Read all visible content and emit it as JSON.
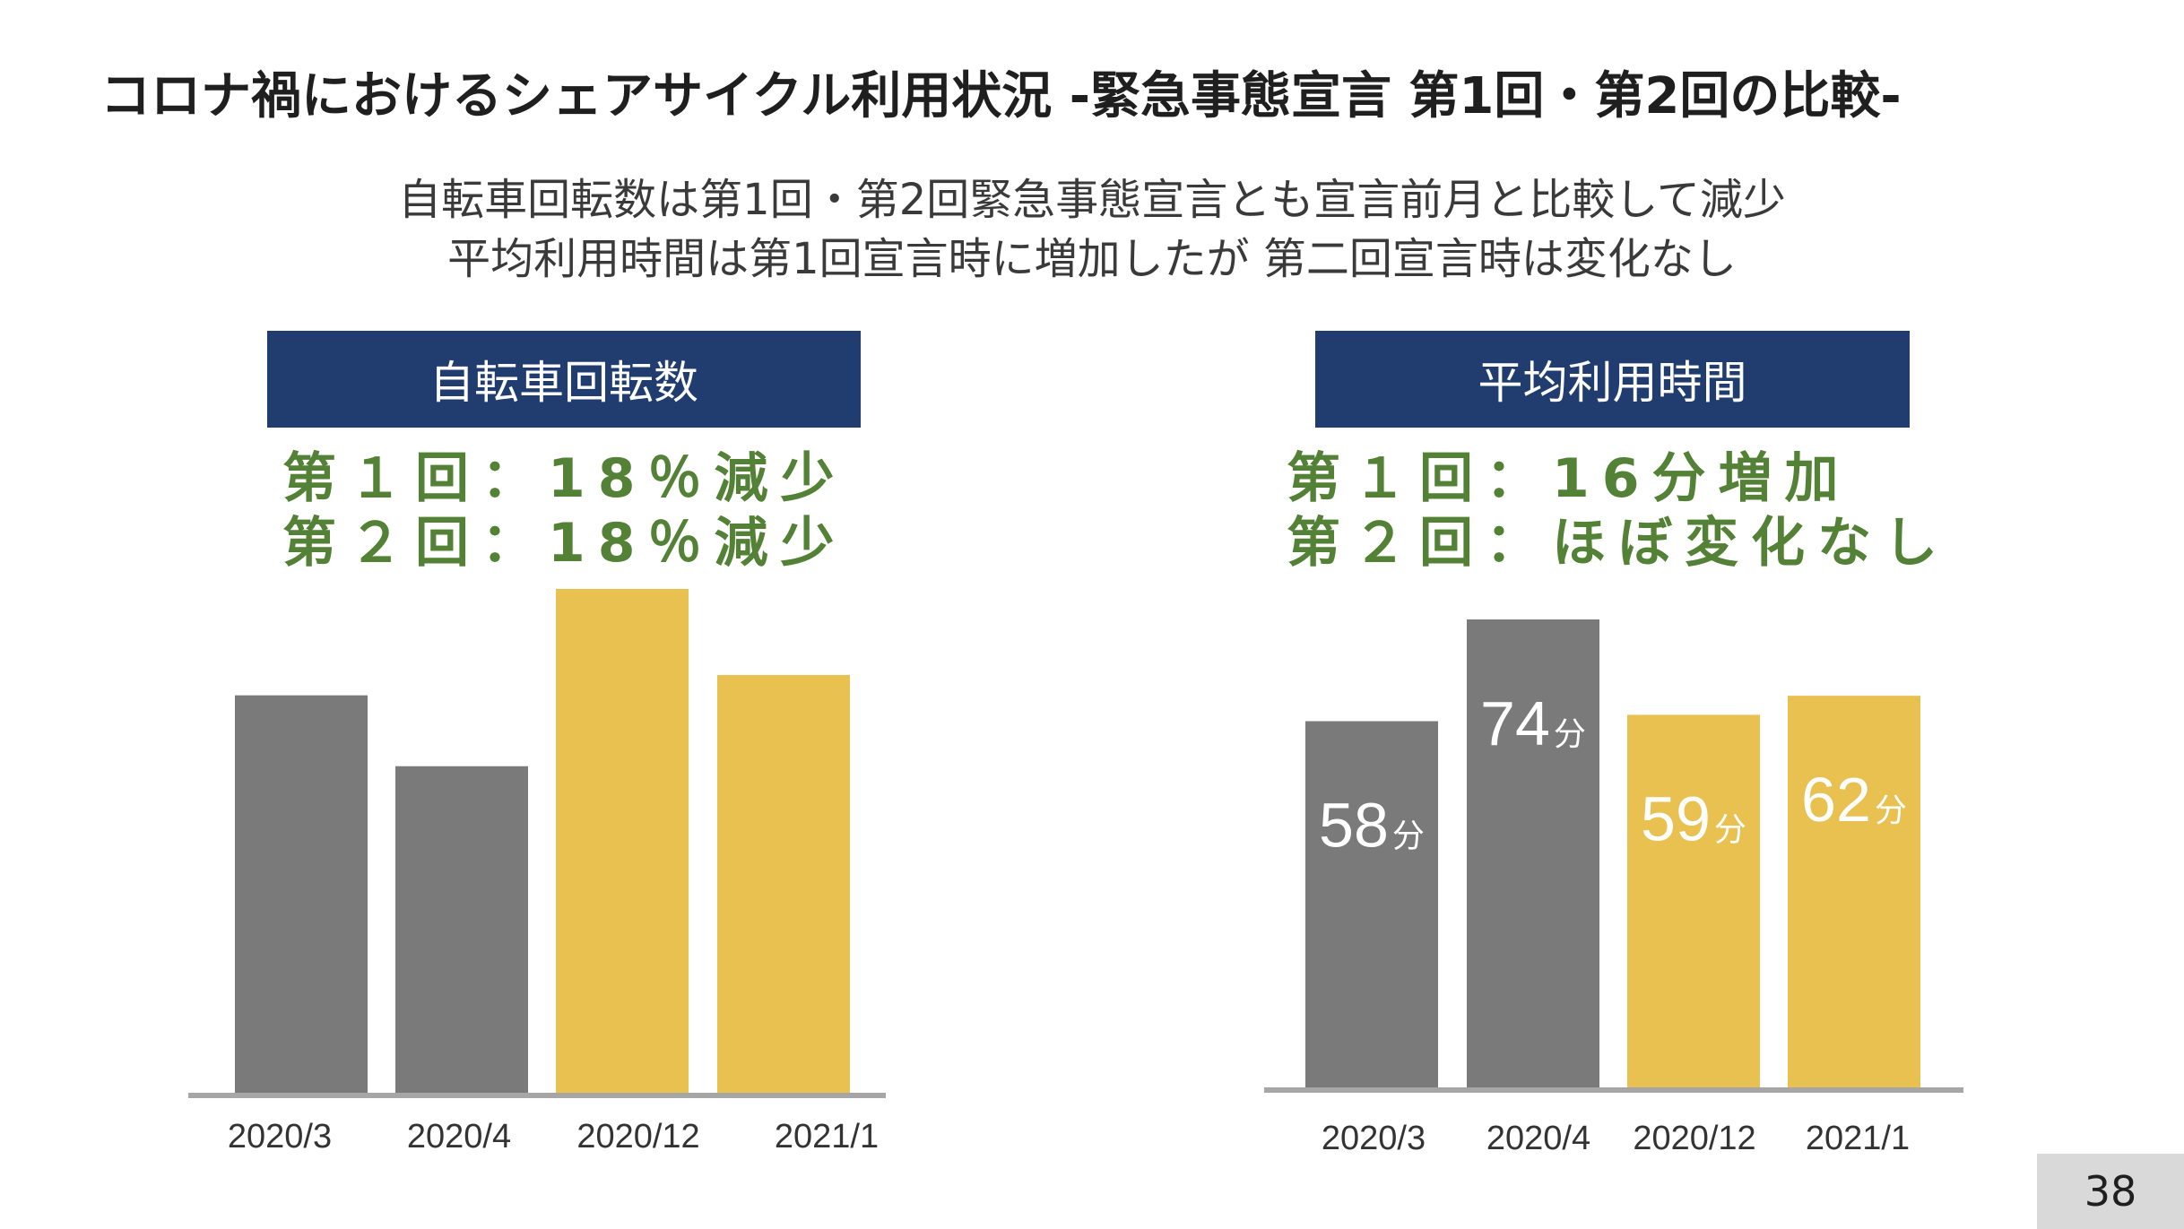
{
  "slide": {
    "title": "コロナ禍におけるシェアサイクル利用状況 -緊急事態宣言 第1回・第2回の比較-",
    "subtitle_line1": "自転車回転数は第1回・第2回緊急事態宣言とも宣言前月と比較して減少",
    "subtitle_line2": "平均利用時間は第1回宣言時に増加したが 第二回宣言時は変化なし",
    "page_number": "38"
  },
  "panels": {
    "left": {
      "header": "自転車回転数",
      "summary_line1": "第１回：18％減少",
      "summary_line2": "第２回：18％減少"
    },
    "right": {
      "header": "平均利用時間",
      "summary_line1": "第１回：16分増加",
      "summary_line2": "第２回：ほぼ変化なし"
    }
  },
  "colors": {
    "gray_bar": "#7a7a7a",
    "yellow_bar": "#e8c150",
    "header_bg": "#213d70",
    "summary_text": "#538135",
    "axis": "#a6a6a6"
  },
  "chart_data": [
    {
      "type": "bar",
      "title": "自転車回転数",
      "categories": [
        "2020/3",
        "2020/4",
        "2020/12",
        "2021/1"
      ],
      "values": [
        79,
        65,
        100,
        83
      ],
      "bar_colors": [
        "#7a7a7a",
        "#7a7a7a",
        "#e8c150",
        "#e8c150"
      ],
      "value_labels": [
        "",
        "",
        "",
        ""
      ],
      "ylim": [
        0,
        100
      ],
      "grid": false
    },
    {
      "type": "bar",
      "title": "平均利用時間",
      "categories": [
        "2020/3",
        "2020/4",
        "2020/12",
        "2021/1"
      ],
      "values": [
        58,
        74,
        59,
        62
      ],
      "bar_colors": [
        "#7a7a7a",
        "#7a7a7a",
        "#e8c150",
        "#e8c150"
      ],
      "value_labels": [
        "58",
        "74",
        "59",
        "62"
      ],
      "value_unit": "分",
      "ylim": [
        0,
        74
      ],
      "grid": false
    }
  ]
}
